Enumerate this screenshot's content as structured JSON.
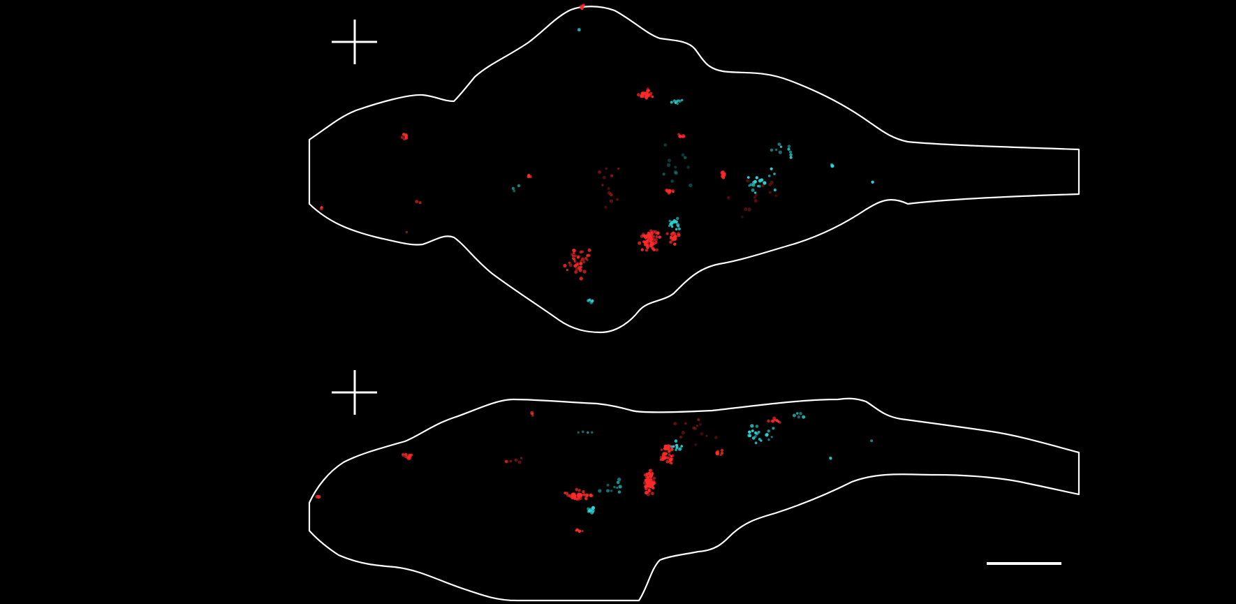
{
  "figure": {
    "background_color": "#000000",
    "outline_color": "#ffffff",
    "views": [
      {
        "name": "dorsal-view"
      },
      {
        "name": "lateral-view"
      }
    ],
    "cell_populations": [
      {
        "name": "red-cells",
        "color": "#ff2a2a"
      },
      {
        "name": "cyan-cells",
        "color": "#29d6d6"
      }
    ],
    "orientation_marker_icon": "crosshair-icon",
    "scale_bar_icon": "scale-bar-icon"
  }
}
